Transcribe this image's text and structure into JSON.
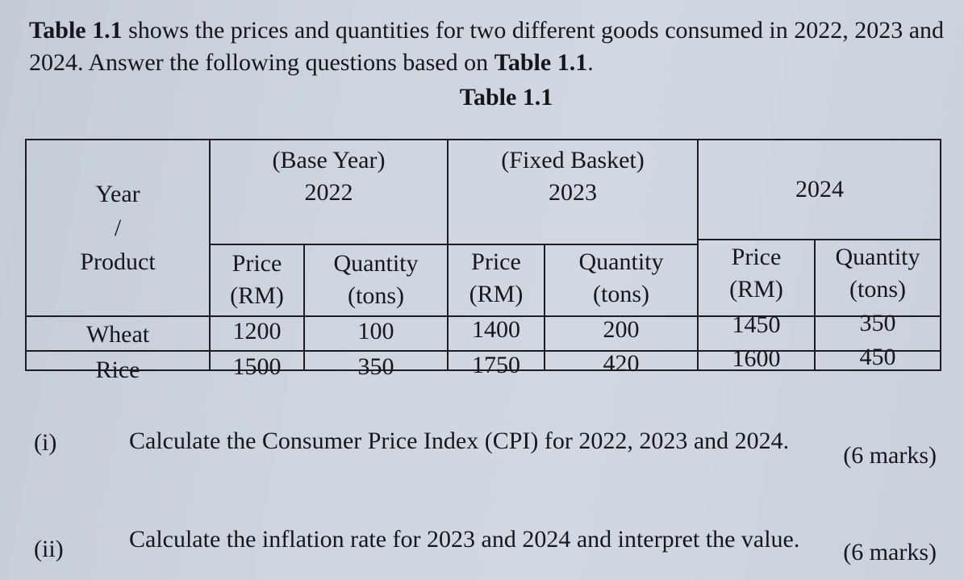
{
  "intro": {
    "t1_bold": "Table 1.1",
    "t1_rest": " shows the prices and quantities for two different goods consumed in 2022, 2023 and 2024. Answer the following questions based on ",
    "t2_bold": "Table 1.1",
    "t2_end": "."
  },
  "table_title": "Table 1.1",
  "table": {
    "stub": {
      "line1": "Year",
      "line2": "/",
      "line3": "Product"
    },
    "years": [
      {
        "line1": "(Base Year)",
        "line2": "2022"
      },
      {
        "line1": "(Fixed Basket)",
        "line2": "2023"
      },
      {
        "line1": "",
        "line2": "2024"
      }
    ],
    "sub": {
      "price_l1": "Price",
      "price_l2": "(RM)",
      "qty_l1": "Quantity",
      "qty_l2": "(tons)"
    },
    "rows": [
      {
        "product": "Wheat",
        "values": [
          "1200",
          "100",
          "1400",
          "200",
          "1450",
          "350"
        ]
      },
      {
        "product": "Rice",
        "values": [
          "1500",
          "350",
          "1750",
          "420",
          "1600",
          "450"
        ]
      }
    ]
  },
  "questions": [
    {
      "num": "(i)",
      "text": "Calculate the Consumer Price Index (CPI) for 2022, 2023 and 2024.",
      "marks": "(6 marks)"
    },
    {
      "num": "(ii)",
      "text": "Calculate the inflation rate for 2023 and 2024 and interpret the value.",
      "marks": "(6 marks)"
    }
  ]
}
